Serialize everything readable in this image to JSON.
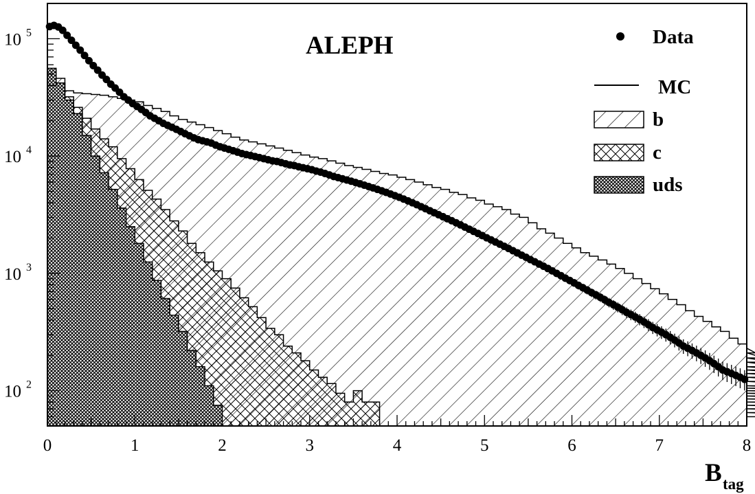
{
  "chart_data": {
    "type": "histogram",
    "title": "ALEPH",
    "xlabel_main": "B",
    "xlabel_sub": "tag",
    "ylabel": "",
    "xlim": [
      0,
      8
    ],
    "ylim": [
      50,
      200000
    ],
    "yscale": "log",
    "grid": false,
    "legend_placement": "top-right",
    "x_ticks": [
      "0",
      "1",
      "2",
      "3",
      "4",
      "5",
      "6",
      "7",
      "8"
    ],
    "y_ticks": [
      {
        "value": 100,
        "base": "10",
        "exp": "2"
      },
      {
        "value": 1000,
        "base": "10",
        "exp": "3"
      },
      {
        "value": 10000,
        "base": "10",
        "exp": "4"
      },
      {
        "value": 100000,
        "base": "10",
        "exp": "5"
      }
    ],
    "legend": [
      {
        "label": "Data",
        "style": "marker"
      },
      {
        "label": "MC",
        "style": "line"
      },
      {
        "label": "b",
        "style": "hatch-single"
      },
      {
        "label": "c",
        "style": "hatch-cross"
      },
      {
        "label": "uds",
        "style": "hatch-dense"
      }
    ],
    "bin_width": 0.1,
    "uds_bins": [
      56000,
      42000,
      30000,
      23000,
      15000,
      10000,
      7200,
      5200,
      3600,
      2500,
      1800,
      1250,
      870,
      610,
      440,
      320,
      220,
      160,
      110,
      75
    ],
    "c_top_bins": [
      38000,
      42000,
      32000,
      26000,
      21000,
      17000,
      14000,
      12000,
      9500,
      7800,
      6300,
      5100,
      4300,
      3500,
      2800,
      2300,
      1800,
      1500,
      1250,
      1050,
      900,
      750,
      620,
      520,
      420,
      340,
      300,
      240,
      210,
      180,
      150,
      130,
      115,
      95,
      80,
      100,
      80,
      80,
      50
    ],
    "mc_total_bins": [
      40000,
      46000,
      36000,
      34500,
      34000,
      33500,
      33000,
      32000,
      31000,
      30000,
      29000,
      27000,
      25500,
      24000,
      22000,
      20500,
      19500,
      18500,
      17500,
      16500,
      15500,
      14500,
      13700,
      13200,
      12700,
      12200,
      11700,
      11200,
      10700,
      10200,
      9800,
      9500,
      9100,
      8700,
      8300,
      8000,
      7700,
      7400,
      7100,
      6900,
      6600,
      6300,
      6000,
      5700,
      5400,
      5200,
      4900,
      4700,
      4400,
      4200,
      3900,
      3700,
      3500,
      3200,
      3000,
      2700,
      2400,
      2200,
      2000,
      1800,
      1650,
      1500,
      1400,
      1300,
      1200,
      1100,
      1000,
      900,
      820,
      740,
      670,
      600,
      540,
      480,
      430,
      390,
      350,
      320,
      280,
      250,
      230,
      210,
      190,
      175,
      160,
      150,
      140,
      130,
      120,
      110,
      105,
      100,
      95,
      90,
      85,
      80,
      75,
      70,
      65,
      60
    ],
    "data_x": [
      0.025,
      0.075,
      0.125,
      0.175,
      0.225,
      0.275,
      0.325,
      0.375,
      0.425,
      0.475,
      0.525,
      0.575,
      0.625,
      0.675,
      0.725,
      0.775,
      0.825,
      0.875,
      0.925,
      0.975,
      1.025,
      1.075,
      1.125,
      1.175,
      1.225,
      1.275,
      1.325,
      1.375,
      1.425,
      1.475,
      1.525,
      1.575,
      1.625,
      1.675,
      1.725,
      1.775,
      1.825,
      1.875,
      1.925,
      1.975,
      2.025,
      2.075,
      2.125,
      2.175,
      2.225,
      2.275,
      2.325,
      2.375,
      2.425,
      2.475,
      2.525,
      2.575,
      2.625,
      2.675,
      2.725,
      2.775,
      2.825,
      2.875,
      2.925,
      2.975,
      3.025,
      3.075,
      3.125,
      3.175,
      3.225,
      3.275,
      3.325,
      3.375,
      3.425,
      3.475,
      3.525,
      3.575,
      3.625,
      3.675,
      3.725,
      3.775,
      3.825,
      3.875,
      3.925,
      3.975,
      4.025,
      4.075,
      4.125,
      4.175,
      4.225,
      4.275,
      4.325,
      4.375,
      4.425,
      4.475,
      4.525,
      4.575,
      4.625,
      4.675,
      4.725,
      4.775,
      4.825,
      4.875,
      4.925,
      4.975,
      5.025,
      5.075,
      5.125,
      5.175,
      5.225,
      5.275,
      5.325,
      5.375,
      5.425,
      5.475,
      5.525,
      5.575,
      5.625,
      5.675,
      5.725,
      5.775,
      5.825,
      5.875,
      5.925,
      5.975,
      6.025,
      6.075,
      6.125,
      6.175,
      6.225,
      6.275,
      6.325,
      6.375,
      6.425,
      6.475,
      6.525,
      6.575,
      6.625,
      6.675,
      6.725,
      6.775,
      6.825,
      6.875,
      6.925,
      6.975,
      7.025,
      7.075,
      7.125,
      7.175,
      7.225,
      7.275,
      7.325,
      7.375,
      7.425,
      7.475,
      7.525,
      7.575,
      7.625,
      7.675,
      7.725,
      7.775,
      7.825,
      7.875,
      7.925,
      7.975
    ],
    "data_y": [
      127000,
      130000,
      126000,
      118000,
      107000,
      97000,
      88000,
      80000,
      72000,
      65000,
      59000,
      54000,
      49000,
      45000,
      41000,
      38000,
      35000,
      32000,
      30000,
      28000,
      26500,
      25000,
      23500,
      22000,
      21000,
      20000,
      19000,
      18300,
      17600,
      16900,
      16200,
      15500,
      14900,
      14300,
      13800,
      13500,
      13200,
      12900,
      12400,
      12000,
      11700,
      11400,
      11100,
      10800,
      10500,
      10300,
      10100,
      9900,
      9700,
      9500,
      9300,
      9100,
      9000,
      8800,
      8600,
      8400,
      8300,
      8100,
      7950,
      7800,
      7650,
      7450,
      7300,
      7100,
      6900,
      6700,
      6550,
      6400,
      6250,
      6100,
      5950,
      5800,
      5650,
      5500,
      5350,
      5200,
      5050,
      4900,
      4750,
      4600,
      4450,
      4300,
      4150,
      4000,
      3850,
      3700,
      3560,
      3420,
      3290,
      3160,
      3040,
      2920,
      2810,
      2700,
      2590,
      2480,
      2380,
      2280,
      2190,
      2100,
      2010,
      1930,
      1850,
      1775,
      1700,
      1630,
      1560,
      1495,
      1430,
      1370,
      1310,
      1255,
      1200,
      1150,
      1100,
      1050,
      1000,
      955,
      910,
      870,
      830,
      790,
      755,
      720,
      685,
      655,
      625,
      595,
      565,
      540,
      515,
      490,
      465,
      445,
      425,
      405,
      385,
      365,
      345,
      330,
      315,
      300,
      285,
      270,
      255,
      240,
      230,
      220,
      210,
      200,
      190,
      180,
      170,
      160,
      150,
      145,
      140,
      135,
      130,
      125
    ]
  }
}
